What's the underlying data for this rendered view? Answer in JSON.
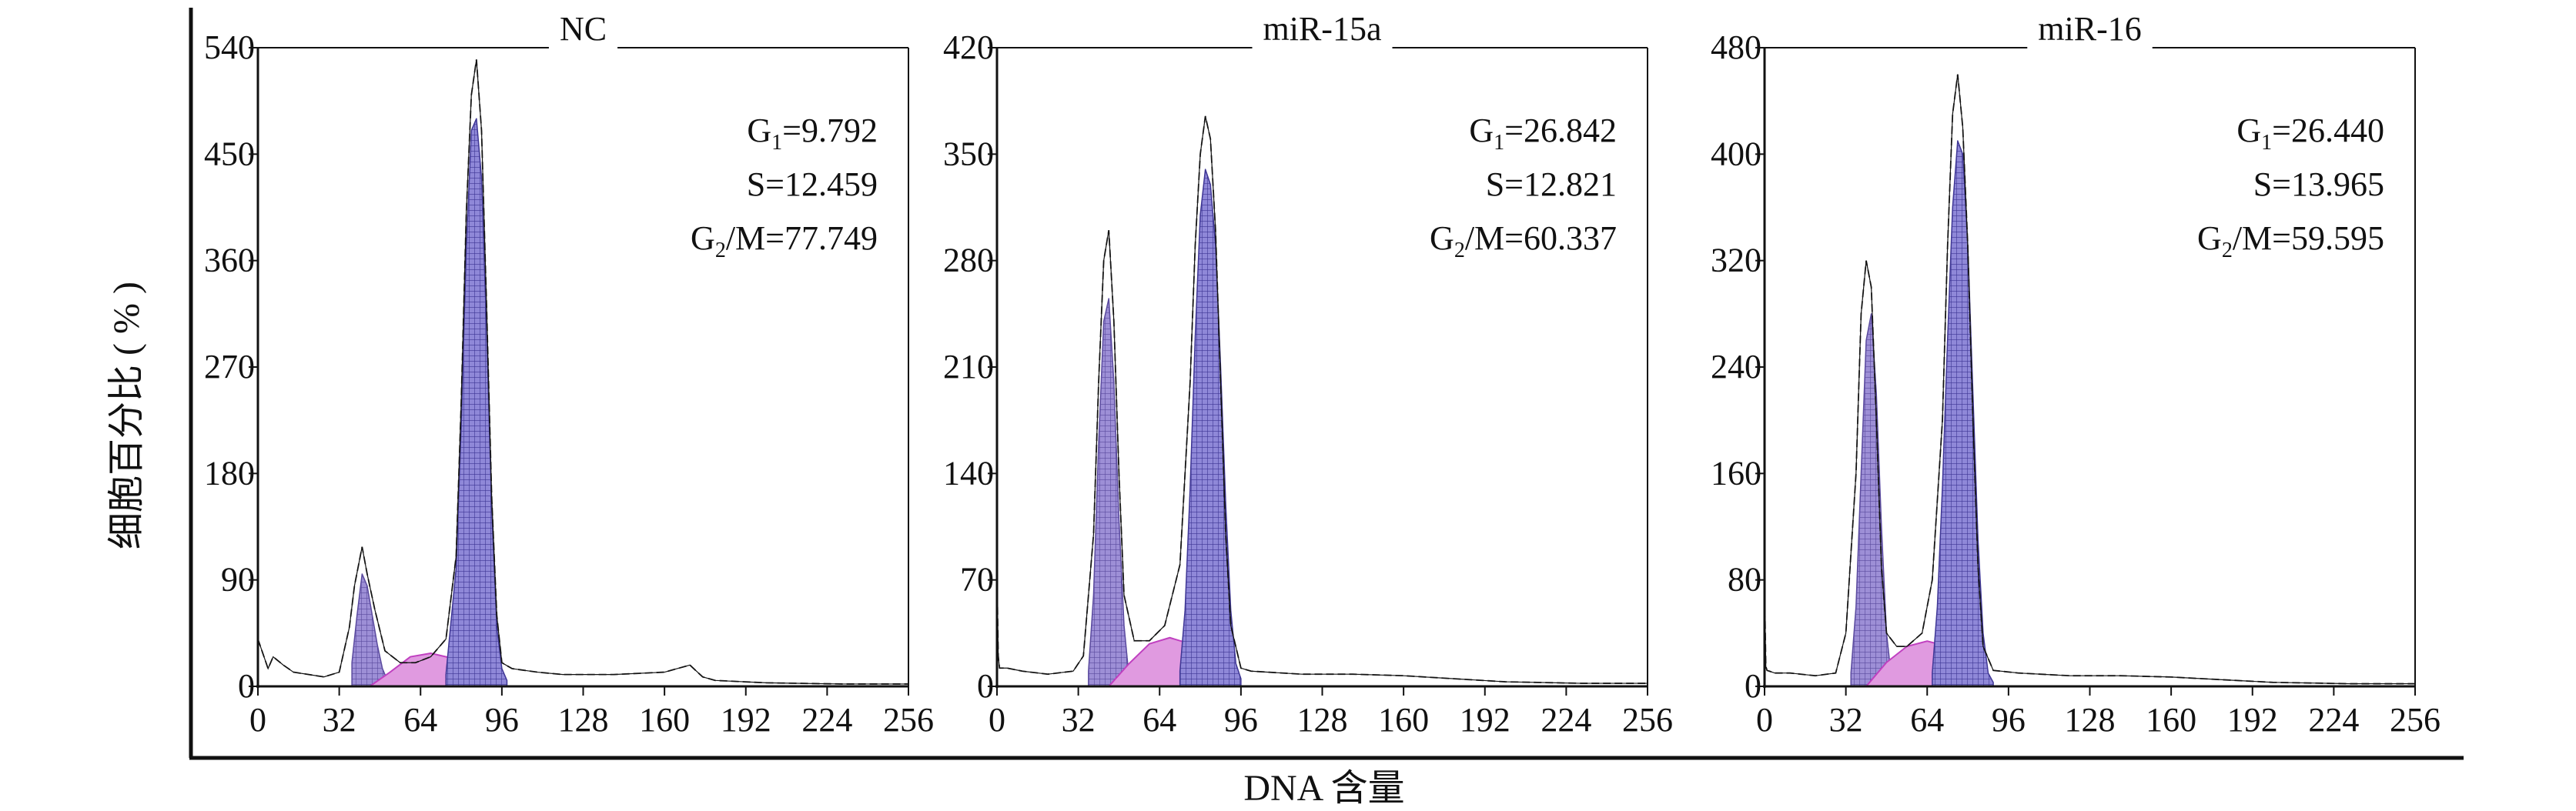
{
  "figure": {
    "ylabel": "细胞百分比 ( % )",
    "xlabel": "DNA 含量"
  },
  "colors": {
    "g1_fill": "#9d8fd6",
    "g1_mesh": "#5a4a9e",
    "g2_fill": "#8f88d8",
    "g2_mesh": "#3e3694",
    "s_fill": "#e09ae0",
    "s_edge": "#c040c0",
    "axis": "#111111"
  },
  "chart_data": [
    {
      "type": "area",
      "title": "NC",
      "x_ticks": [
        0,
        32,
        64,
        96,
        128,
        160,
        192,
        224,
        256
      ],
      "y_ticks": [
        0,
        90,
        180,
        270,
        360,
        450,
        540
      ],
      "xlim": [
        0,
        256
      ],
      "ylim": [
        0,
        540
      ],
      "annotations": [
        {
          "label": "G",
          "sub": "1",
          "value": "=9.792"
        },
        {
          "label": "S",
          "sub": "",
          "value": "=12.459"
        },
        {
          "label": "G",
          "sub": "2",
          "value": "/M=77.749"
        }
      ],
      "g1": {
        "x": [
          37,
          39,
          41,
          43,
          45,
          47,
          49,
          51
        ],
        "y": [
          20,
          60,
          95,
          85,
          60,
          35,
          15,
          5
        ]
      },
      "s": {
        "x": [
          44,
          52,
          60,
          68,
          76,
          84,
          92
        ],
        "y": [
          0,
          12,
          25,
          28,
          24,
          10,
          0
        ]
      },
      "g2": {
        "x": [
          74,
          78,
          80,
          82,
          84,
          86,
          88,
          90,
          92,
          94,
          96,
          98
        ],
        "y": [
          10,
          100,
          220,
          370,
          470,
          480,
          430,
          300,
          150,
          50,
          15,
          5
        ]
      },
      "histogram": {
        "x": [
          0,
          4,
          6,
          10,
          14,
          20,
          26,
          32,
          36,
          38,
          41,
          43,
          46,
          50,
          56,
          62,
          68,
          74,
          78,
          80,
          82,
          84,
          86,
          88,
          90,
          92,
          94,
          96,
          100,
          110,
          120,
          140,
          160,
          170,
          175,
          180,
          200,
          230,
          256
        ],
        "y": [
          40,
          15,
          25,
          18,
          12,
          10,
          8,
          12,
          50,
          85,
          118,
          95,
          65,
          30,
          20,
          20,
          25,
          40,
          110,
          240,
          400,
          500,
          530,
          470,
          320,
          160,
          60,
          20,
          15,
          12,
          10,
          10,
          12,
          18,
          8,
          5,
          3,
          2,
          2
        ]
      }
    },
    {
      "type": "area",
      "title": "miR-15a",
      "x_ticks": [
        0,
        32,
        64,
        96,
        128,
        160,
        192,
        224,
        256
      ],
      "y_ticks": [
        0,
        70,
        140,
        210,
        280,
        350,
        420
      ],
      "xlim": [
        0,
        256
      ],
      "ylim": [
        0,
        420
      ],
      "annotations": [
        {
          "label": "G",
          "sub": "1",
          "value": "=26.842"
        },
        {
          "label": "S",
          "sub": "",
          "value": "=12.821"
        },
        {
          "label": "G",
          "sub": "2",
          "value": "/M=60.337"
        }
      ],
      "g1": {
        "x": [
          36,
          38,
          40,
          42,
          44,
          46,
          48,
          50,
          52
        ],
        "y": [
          10,
          60,
          160,
          240,
          255,
          200,
          110,
          40,
          5
        ]
      },
      "s": {
        "x": [
          44,
          52,
          60,
          68,
          76,
          84,
          94
        ],
        "y": [
          0,
          15,
          28,
          32,
          28,
          14,
          0
        ]
      },
      "g2": {
        "x": [
          72,
          74,
          76,
          78,
          80,
          82,
          84,
          86,
          88,
          90,
          92,
          94,
          96
        ],
        "y": [
          10,
          50,
          130,
          230,
          310,
          340,
          330,
          290,
          210,
          120,
          50,
          15,
          5
        ]
      },
      "histogram": {
        "x": [
          0,
          0.5,
          1,
          4,
          10,
          20,
          30,
          34,
          38,
          40,
          42,
          44,
          46,
          48,
          50,
          54,
          60,
          66,
          72,
          76,
          78,
          80,
          82,
          84,
          86,
          88,
          90,
          92,
          96,
          100,
          120,
          140,
          160,
          180,
          200,
          230,
          256
        ],
        "y": [
          75,
          20,
          12,
          12,
          10,
          8,
          10,
          20,
          100,
          200,
          280,
          300,
          240,
          140,
          60,
          30,
          30,
          40,
          80,
          200,
          290,
          350,
          375,
          360,
          300,
          200,
          100,
          40,
          12,
          10,
          8,
          8,
          7,
          5,
          3,
          2,
          2
        ]
      }
    },
    {
      "type": "area",
      "title": "miR-16",
      "x_ticks": [
        0,
        32,
        64,
        96,
        128,
        160,
        192,
        224,
        256
      ],
      "y_ticks": [
        0,
        80,
        160,
        240,
        320,
        400,
        480
      ],
      "xlim": [
        0,
        256
      ],
      "ylim": [
        0,
        480
      ],
      "annotations": [
        {
          "label": "G",
          "sub": "1",
          "value": "=26.440"
        },
        {
          "label": "S",
          "sub": "",
          "value": "=13.965"
        },
        {
          "label": "G",
          "sub": "2",
          "value": "/M=59.595"
        }
      ],
      "g1": {
        "x": [
          34,
          36,
          38,
          40,
          42,
          44,
          46,
          48,
          50
        ],
        "y": [
          10,
          60,
          160,
          260,
          280,
          220,
          120,
          40,
          5
        ]
      },
      "s": {
        "x": [
          40,
          48,
          56,
          64,
          72,
          80,
          88
        ],
        "y": [
          0,
          18,
          30,
          34,
          30,
          15,
          0
        ]
      },
      "g2": {
        "x": [
          66,
          68,
          70,
          72,
          74,
          76,
          78,
          80,
          82,
          84,
          86,
          88,
          90
        ],
        "y": [
          10,
          60,
          150,
          260,
          360,
          410,
          400,
          330,
          220,
          110,
          40,
          10,
          3
        ]
      },
      "histogram": {
        "x": [
          0,
          0.5,
          1,
          4,
          10,
          20,
          28,
          32,
          36,
          38,
          40,
          42,
          44,
          46,
          48,
          52,
          56,
          62,
          66,
          70,
          72,
          74,
          76,
          78,
          80,
          82,
          84,
          86,
          90,
          100,
          120,
          140,
          160,
          180,
          200,
          230,
          256
        ],
        "y": [
          75,
          15,
          12,
          10,
          10,
          8,
          10,
          40,
          160,
          280,
          320,
          300,
          200,
          90,
          40,
          30,
          30,
          40,
          80,
          200,
          330,
          430,
          460,
          420,
          330,
          200,
          90,
          30,
          12,
          10,
          8,
          8,
          7,
          5,
          3,
          2,
          2
        ]
      }
    }
  ]
}
